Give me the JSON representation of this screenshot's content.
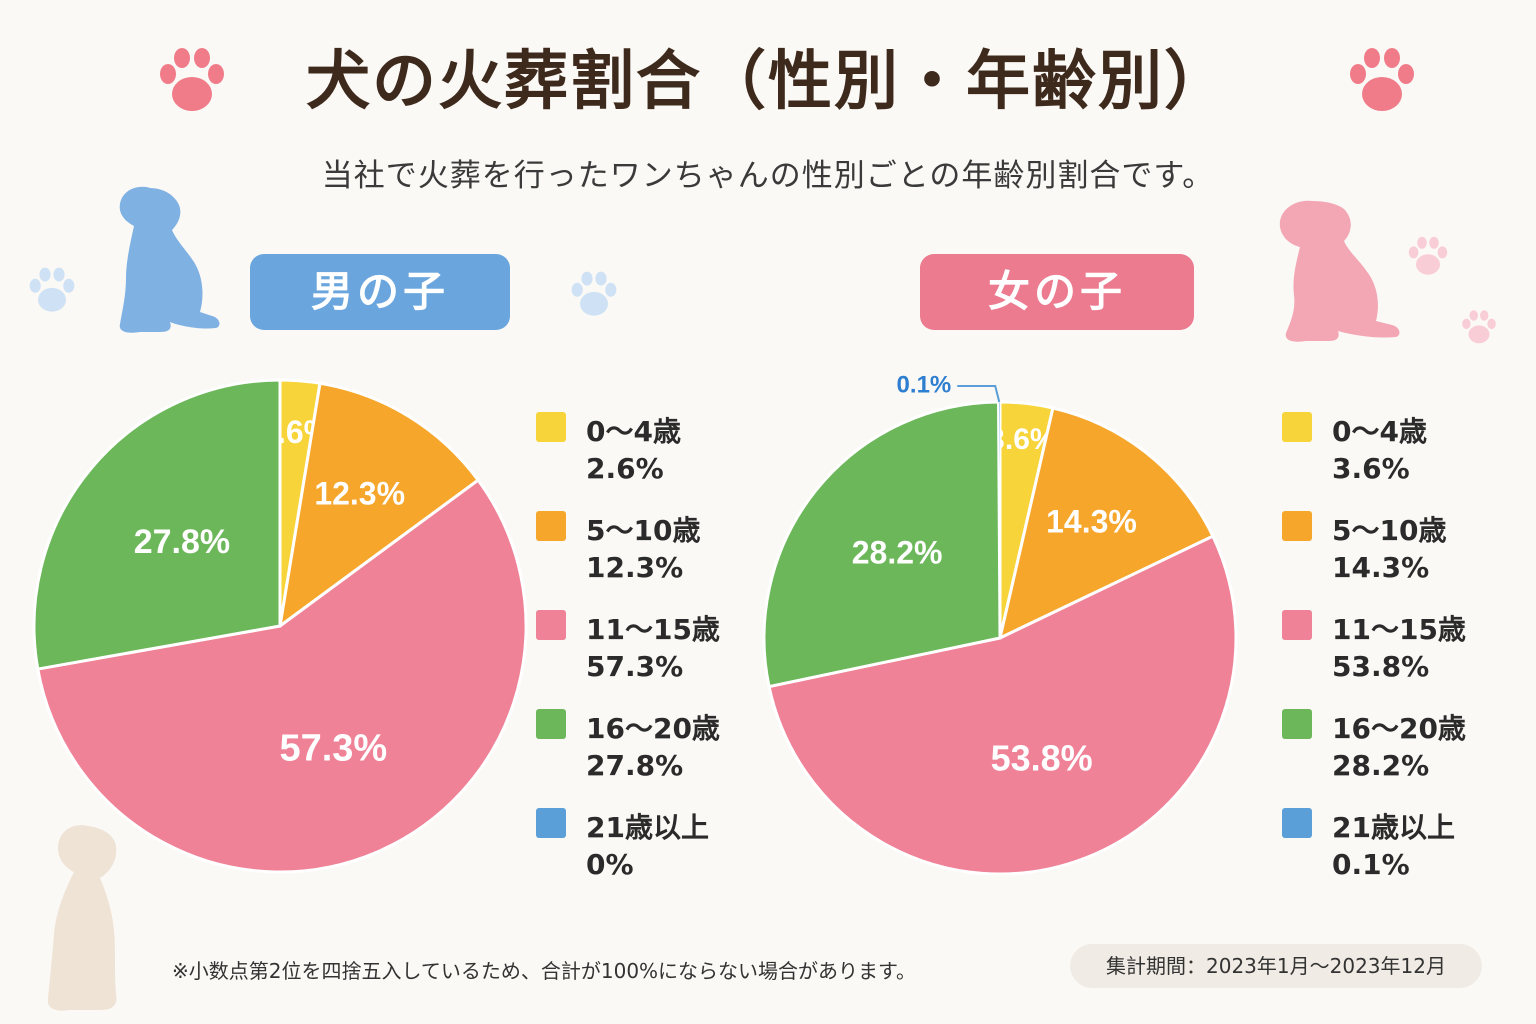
{
  "title": "犬の火葬割合（性別・年齢別）",
  "subtitle": "当社で火葬を行ったワンちゃんの性別ごとの年齢別割合です。",
  "note": "※小数点第2位を四捨五入しているため、合計が100%にならない場合があります。",
  "period": "集計期間：2023年1月〜2023年12月",
  "colors": {
    "age_0_4": "#f7d43a",
    "age_5_10": "#f6a62b",
    "age_11_15": "#ef8297",
    "age_16_20": "#6cb75a",
    "age_21_plus": "#5a9fd8",
    "male_accent": "#6aa6dd",
    "female_accent": "#ec7b8f"
  },
  "chart_data": [
    {
      "type": "pie",
      "title": "男の子",
      "categories": [
        "0〜4歳",
        "5〜10歳",
        "11〜15歳",
        "16〜20歳",
        "21歳以上"
      ],
      "values": [
        2.6,
        12.3,
        57.3,
        27.8,
        0
      ],
      "value_labels": [
        "2.6%",
        "12.3%",
        "57.3%",
        "27.8%",
        "0%"
      ],
      "legend_placement": "right"
    },
    {
      "type": "pie",
      "title": "女の子",
      "categories": [
        "0〜4歳",
        "5〜10歳",
        "11〜15歳",
        "16〜20歳",
        "21歳以上"
      ],
      "values": [
        3.6,
        14.3,
        53.8,
        28.2,
        0.1
      ],
      "value_labels": [
        "3.6%",
        "14.3%",
        "53.8%",
        "28.2%",
        "0.1%"
      ],
      "legend_placement": "right"
    }
  ]
}
